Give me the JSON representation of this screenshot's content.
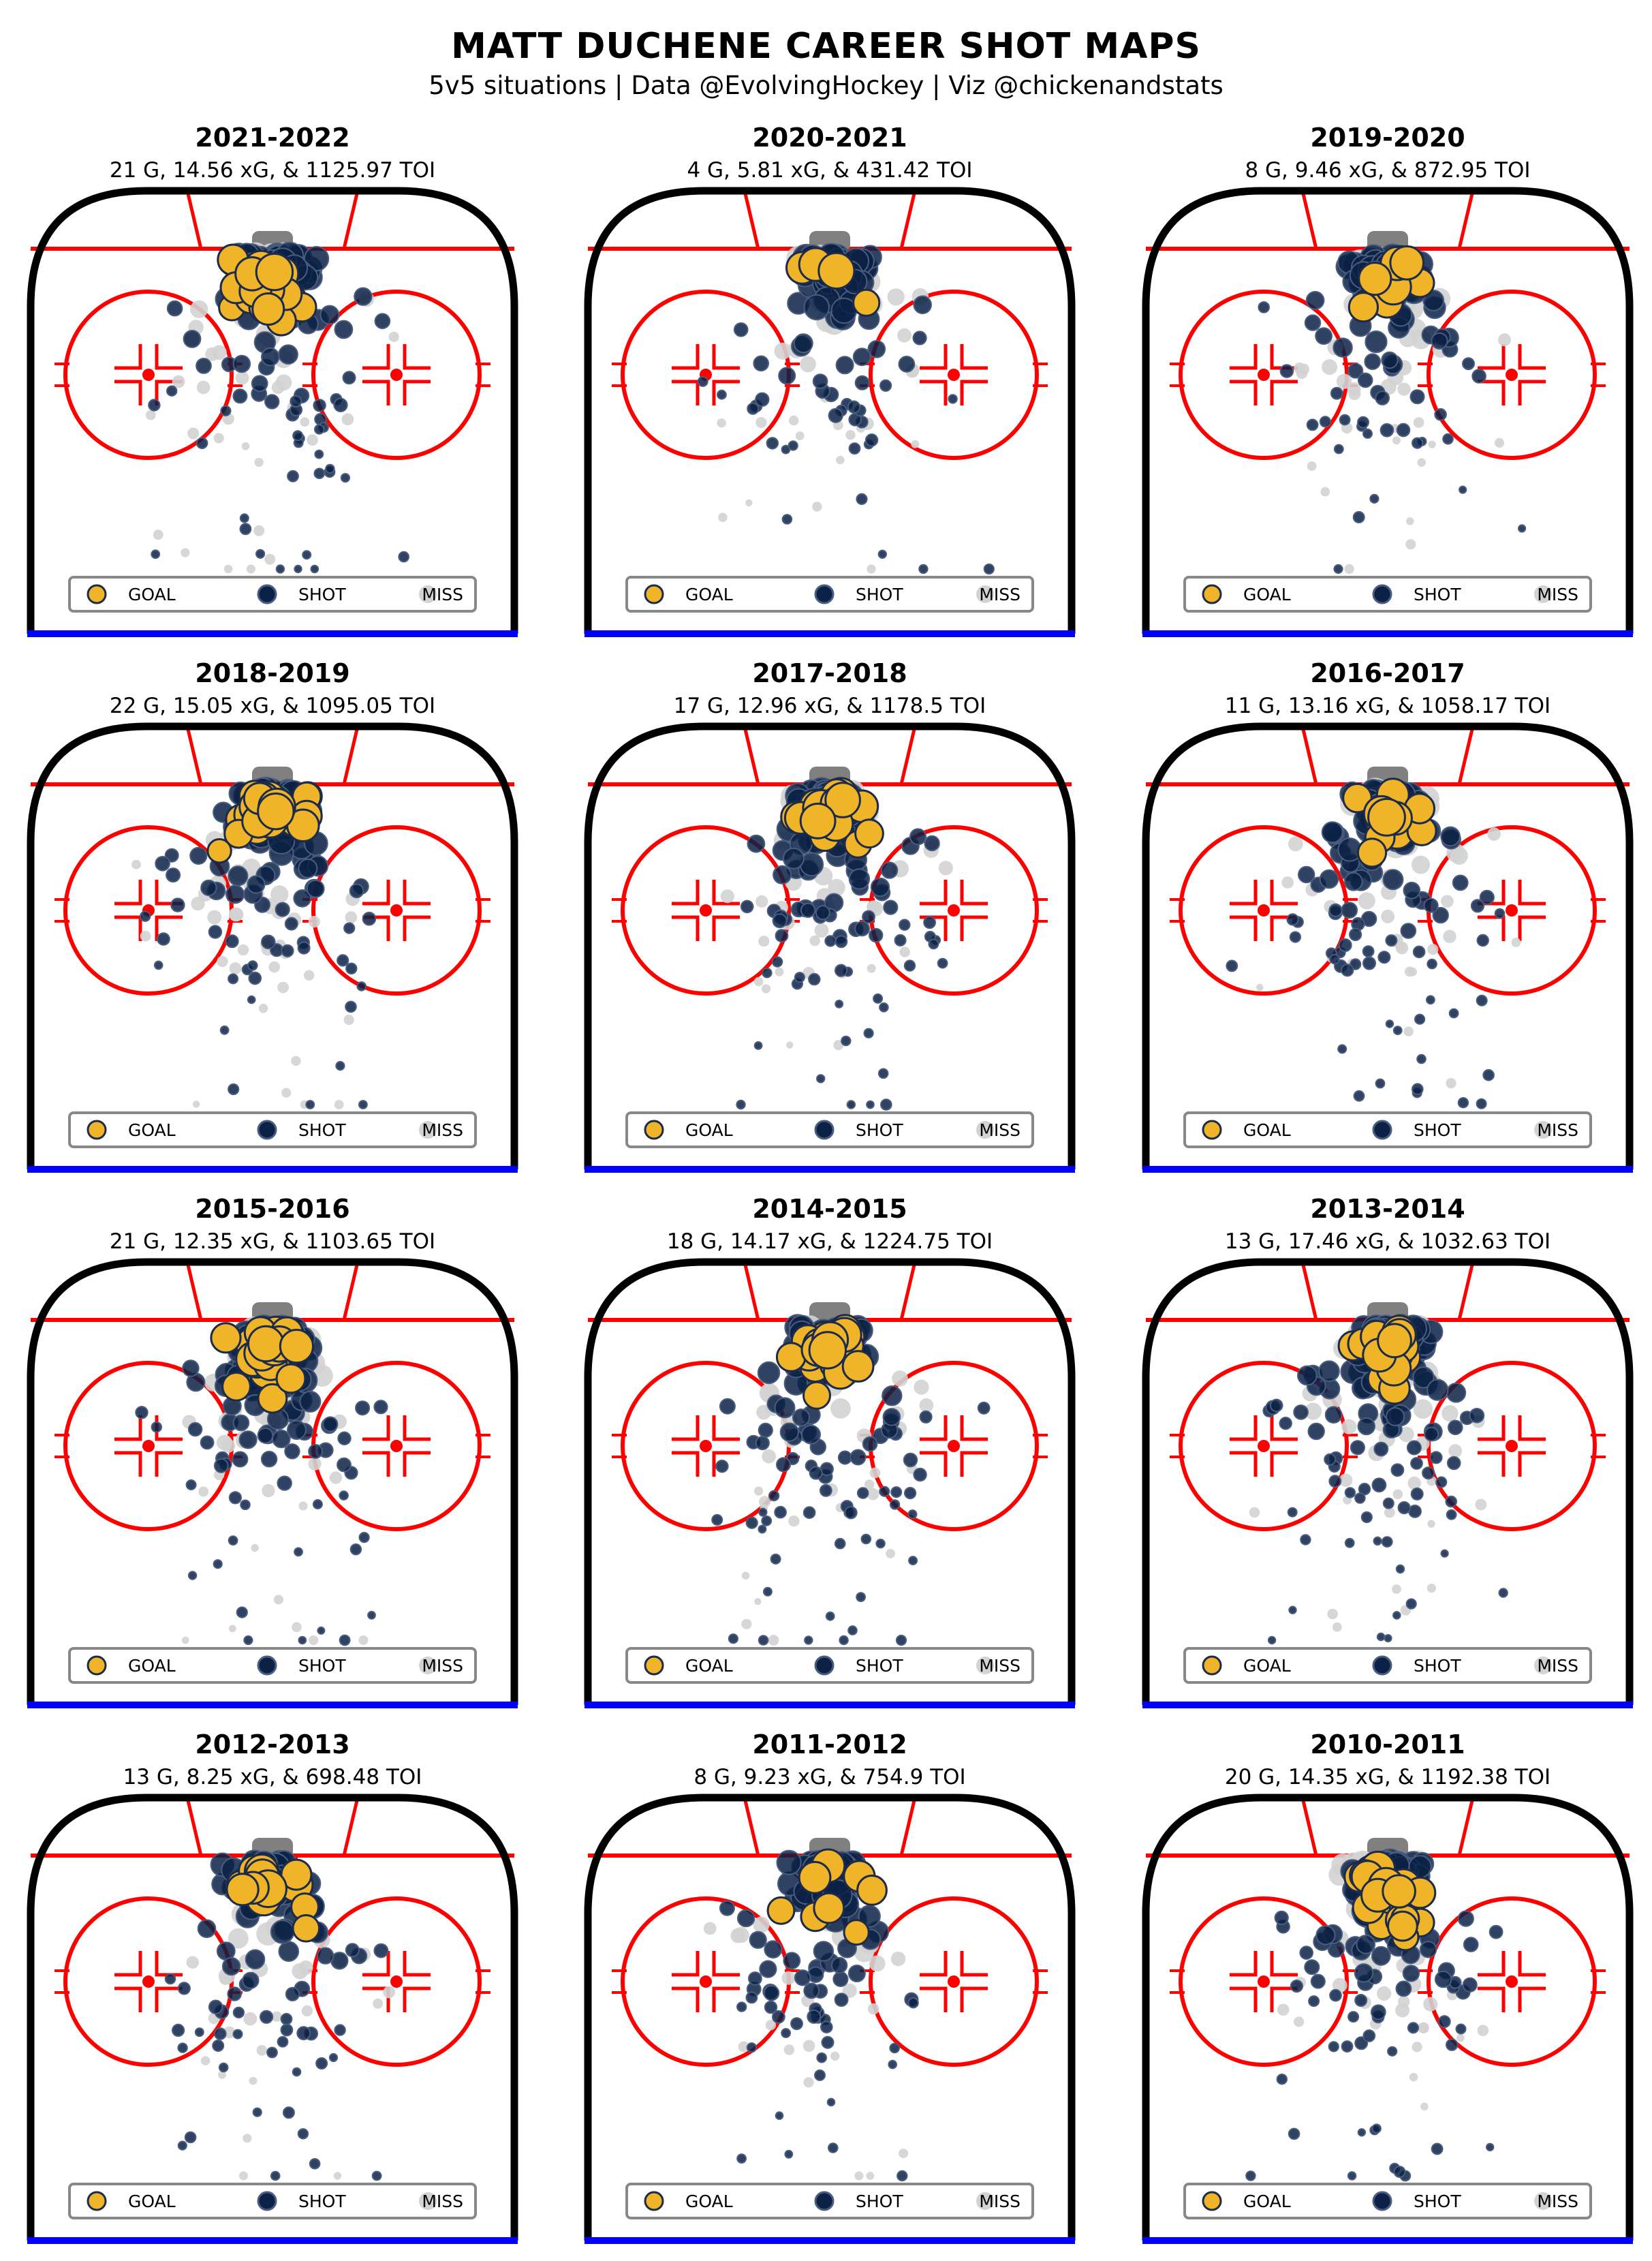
{
  "title": "MATT DUCHENE CAREER SHOT MAPS",
  "subtitle": "5v5 situations | Data @EvolvingHockey | Viz @chickenandstats",
  "legend": {
    "goal": "GOAL",
    "shot": "SHOT",
    "miss": "MISS"
  },
  "colors": {
    "goal": "#f0b429",
    "goal_edge": "#1c2b4a",
    "shot": "#0b2145",
    "shot_edge": "#4a5d7e",
    "miss": "#d3d3d3",
    "board": "#000000",
    "red_line": "#ff0000",
    "blue_line": "#0000ff",
    "crease": "#add8e6",
    "net": "#808080"
  },
  "chart_data": [
    {
      "type": "scatter",
      "season": "2021-2022",
      "stats": "21 G, 14.56 xG, & 1125.97 TOI",
      "goals": 21,
      "xg": 14.56,
      "toi": 1125.97
    },
    {
      "type": "scatter",
      "season": "2020-2021",
      "stats": "4 G, 5.81 xG, & 431.42 TOI",
      "goals": 4,
      "xg": 5.81,
      "toi": 431.42
    },
    {
      "type": "scatter",
      "season": "2019-2020",
      "stats": "8 G, 9.46 xG, & 872.95 TOI",
      "goals": 8,
      "xg": 9.46,
      "toi": 872.95
    },
    {
      "type": "scatter",
      "season": "2018-2019",
      "stats": "22 G, 15.05 xG, & 1095.05 TOI",
      "goals": 22,
      "xg": 15.05,
      "toi": 1095.05
    },
    {
      "type": "scatter",
      "season": "2017-2018",
      "stats": "17 G, 12.96 xG, & 1178.5 TOI",
      "goals": 17,
      "xg": 12.96,
      "toi": 1178.5
    },
    {
      "type": "scatter",
      "season": "2016-2017",
      "stats": "11 G, 13.16 xG, & 1058.17 TOI",
      "goals": 11,
      "xg": 13.16,
      "toi": 1058.17
    },
    {
      "type": "scatter",
      "season": "2015-2016",
      "stats": "21 G, 12.35 xG, & 1103.65 TOI",
      "goals": 21,
      "xg": 12.35,
      "toi": 1103.65
    },
    {
      "type": "scatter",
      "season": "2014-2015",
      "stats": "18 G, 14.17 xG, & 1224.75 TOI",
      "goals": 18,
      "xg": 14.17,
      "toi": 1224.75
    },
    {
      "type": "scatter",
      "season": "2013-2014",
      "stats": "13 G, 17.46 xG, & 1032.63 TOI",
      "goals": 13,
      "xg": 17.46,
      "toi": 1032.63
    },
    {
      "type": "scatter",
      "season": "2012-2013",
      "stats": "13 G, 8.25 xG, & 698.48 TOI",
      "goals": 13,
      "xg": 8.25,
      "toi": 698.48
    },
    {
      "type": "scatter",
      "season": "2011-2012",
      "stats": "8 G, 9.23 xG, & 754.9 TOI",
      "goals": 8,
      "xg": 9.23,
      "toi": 754.9
    },
    {
      "type": "scatter",
      "season": "2010-2011",
      "stats": "20 G, 14.35 xG, & 1192.38 TOI",
      "goals": 20,
      "xg": 14.35,
      "toi": 1192.38
    }
  ]
}
